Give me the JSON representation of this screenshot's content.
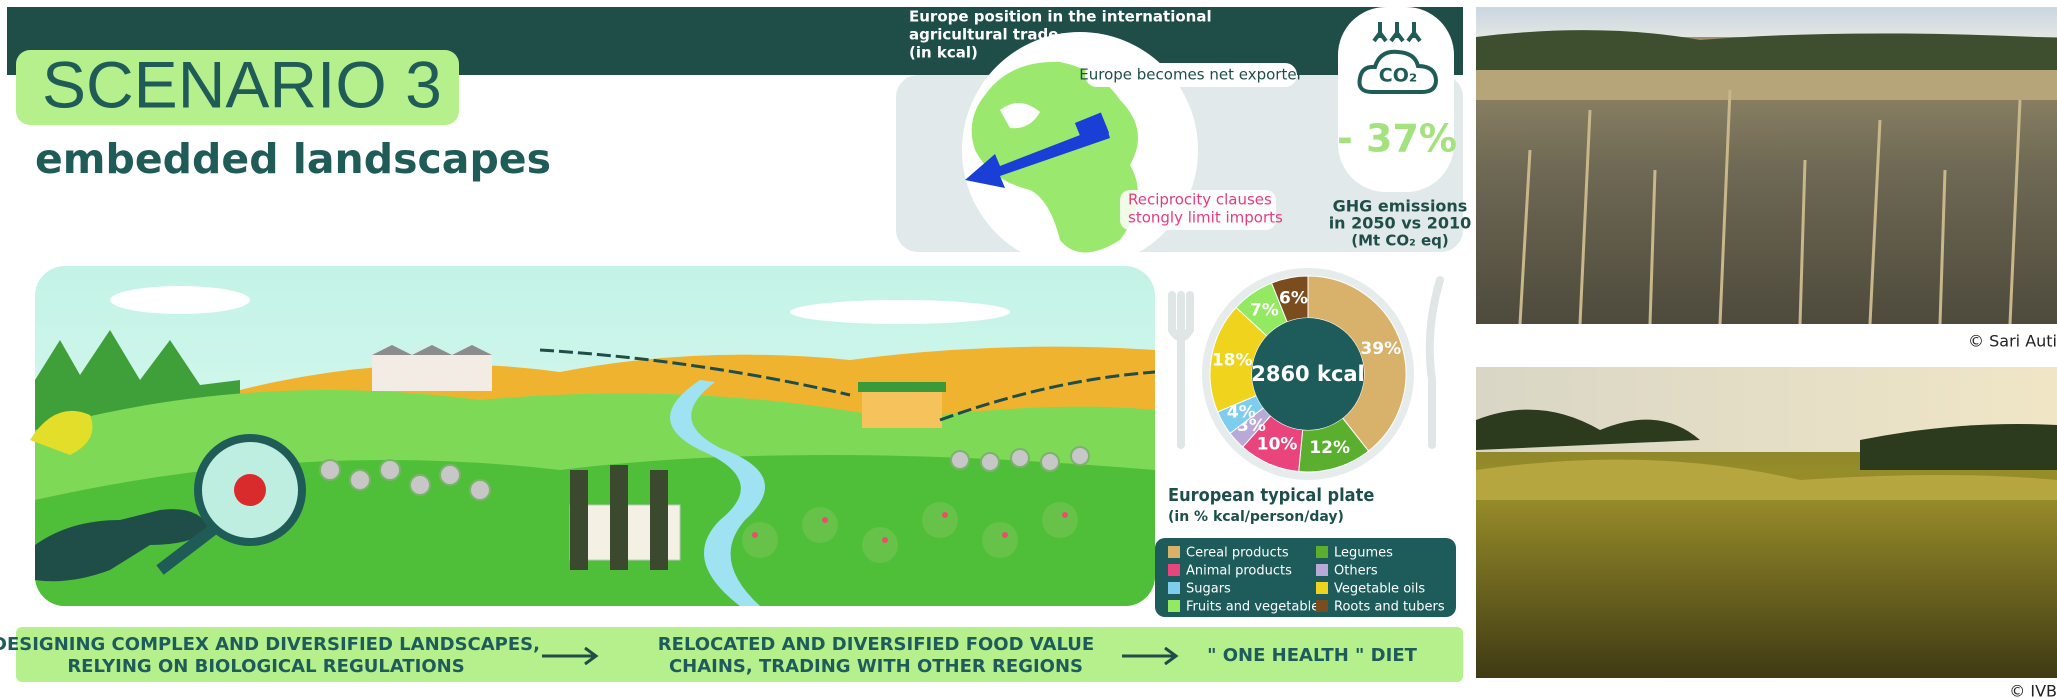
{
  "header": {
    "title": "SCENARIO 3",
    "subtitle": "embedded landscapes"
  },
  "trade": {
    "title_lines": [
      "Europe position in the international",
      "agricultural trade",
      "(in kcal)"
    ],
    "callout_export": "Europe becomes net exporter",
    "callout_imports_lines": [
      "Reciprocity clauses",
      "stongly limit imports"
    ]
  },
  "emissions": {
    "icon_label": "CO₂",
    "value_label": "- 37%",
    "label_lines": [
      "GHG emissions",
      "in 2050 vs 2010",
      "(Mt CO₂ eq)"
    ]
  },
  "chart_data": {
    "type": "donut",
    "title": "European typical plate",
    "subtitle": "(in % kcal/person/day)",
    "center_label": "2860 kcal",
    "categories": [
      "Cereal products",
      "Legumes",
      "Animal products",
      "Others",
      "Sugars",
      "Vegetable oils",
      "Fruits and vegetables",
      "Roots and tubers"
    ],
    "values": [
      39,
      12,
      10,
      3,
      4,
      18,
      7,
      6
    ],
    "value_labels": [
      "39%",
      "12%",
      "10%",
      "3%",
      "4%",
      "18%",
      "7%",
      "6%"
    ],
    "colors": [
      "#d8b26a",
      "#5aaf2e",
      "#e9447b",
      "#b9a9d6",
      "#7fcdee",
      "#f0d31c",
      "#93ea62",
      "#7a4c1e"
    ]
  },
  "pathway": {
    "steps": [
      {
        "lines": [
          "DESIGNING COMPLEX AND DIVERSIFIED LANDSCAPES,",
          "RELYING ON BIOLOGICAL REGULATIONS"
        ]
      },
      {
        "lines": [
          "RELOCATED AND DIVERSIFIED FOOD VALUE",
          "CHAINS, TRADING WITH OTHER REGIONS"
        ]
      },
      {
        "lines": [
          "\" ONE HEALTH \" DIET"
        ]
      }
    ]
  },
  "photos": {
    "credits": [
      "© Sari Auti",
      "© IVB"
    ]
  }
}
